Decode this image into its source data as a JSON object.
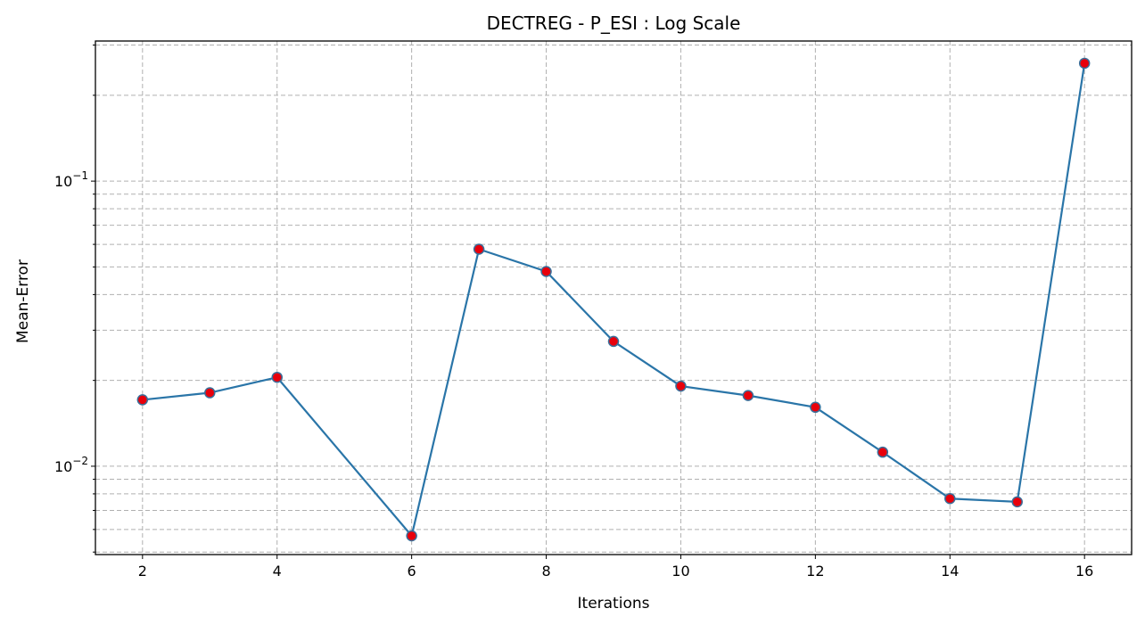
{
  "chart_data": {
    "type": "line",
    "title": "DECTREG - P_ESI : Log Scale",
    "xlabel": "Iterations",
    "ylabel": "Mean-Error",
    "yscale": "log",
    "grid": true,
    "xlim": [
      1.3,
      16.7
    ],
    "ylim": [
      0.0049,
      0.31
    ],
    "xticks": [
      2,
      4,
      6,
      8,
      10,
      12,
      14,
      16
    ],
    "xtick_labels": [
      "2",
      "4",
      "6",
      "8",
      "10",
      "12",
      "14",
      "16"
    ],
    "yticks_major": [
      0.01,
      0.1
    ],
    "yticks_minor": [
      0.005,
      0.006,
      0.007,
      0.008,
      0.009,
      0.02,
      0.03,
      0.04,
      0.05,
      0.06,
      0.07,
      0.08,
      0.09,
      0.2,
      0.3
    ],
    "series": [
      {
        "x": [
          2,
          3,
          4,
          6,
          7,
          8,
          9,
          10,
          11,
          12,
          13,
          14,
          15,
          16
        ],
        "y": [
          0.0171,
          0.0181,
          0.0205,
          0.0057,
          0.0577,
          0.0482,
          0.0274,
          0.0191,
          0.0177,
          0.0161,
          0.0112,
          0.0077,
          0.0075,
          0.259
        ],
        "line_color": "#2a75a8",
        "marker_face": "#e8000b",
        "marker_edge": "#3a6f9a"
      }
    ]
  }
}
